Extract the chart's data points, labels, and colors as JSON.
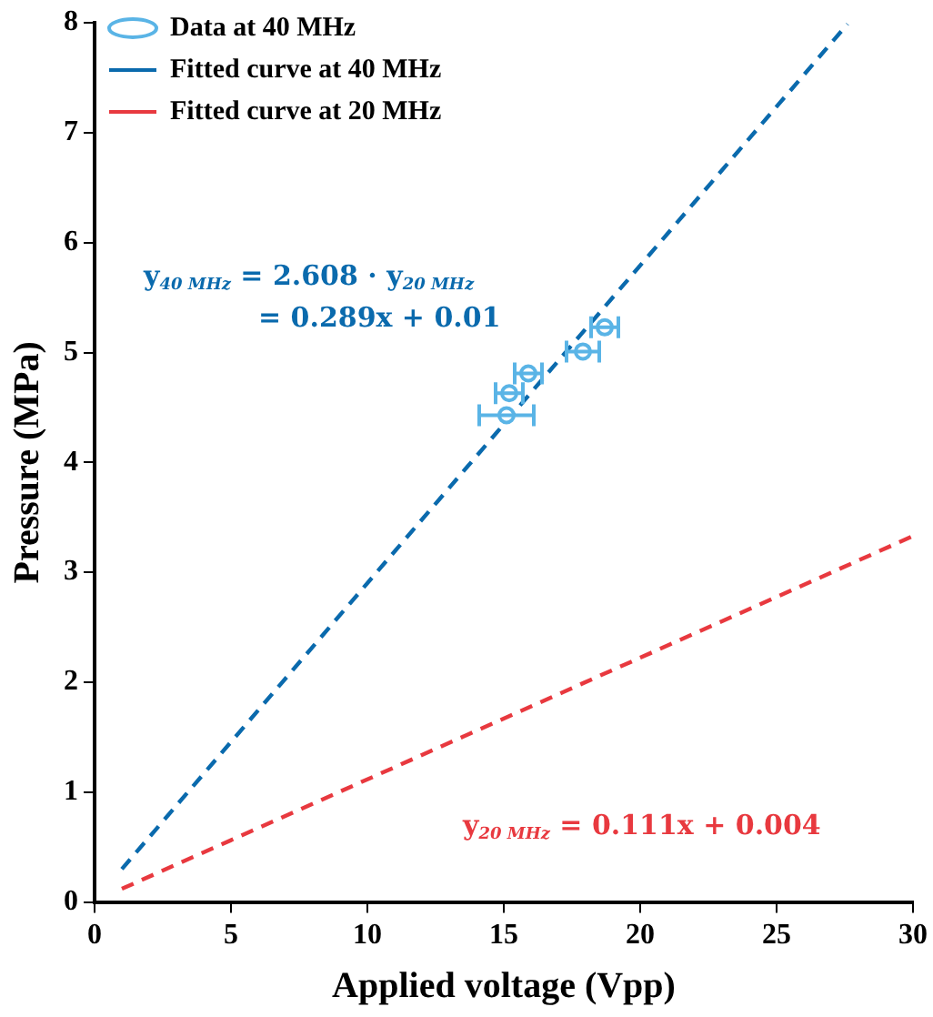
{
  "chart_data": {
    "type": "scatter",
    "xlabel": "Applied voltage (Vpp)",
    "ylabel": "Pressure (MPa)",
    "xlim": [
      0,
      30
    ],
    "xticks": [
      0,
      5,
      10,
      15,
      20,
      25,
      30
    ],
    "ylim": [
      0,
      8
    ],
    "yticks": [
      0,
      1,
      2,
      3,
      4,
      5,
      6,
      7,
      8
    ],
    "grid": false,
    "legend": "top left",
    "series": [
      {
        "name": "Data at 40 MHz",
        "color": "#5ab4e6",
        "marker": "circle",
        "x": [
          15.1,
          15.2,
          15.9,
          17.9,
          18.7
        ],
        "values": [
          4.43,
          4.63,
          4.81,
          5.01,
          5.23
        ],
        "xerrors": [
          1.0,
          0.5,
          0.5,
          0.6,
          0.5
        ]
      },
      {
        "name": "Fitted curve at 40 MHz",
        "type": "line",
        "color": "#0a6aad",
        "marker": "none",
        "line_style": "dashed",
        "x": [
          1,
          27.6
        ],
        "values": [
          0.3,
          7.99
        ]
      },
      {
        "name": "Fitted curve at 20 MHz",
        "type": "line",
        "color": "#e8393f",
        "marker": "none",
        "line_style": "dashed",
        "x": [
          1,
          30
        ],
        "values": [
          0.12,
          3.33
        ]
      }
    ],
    "annotations": [
      "y$_{40 MHz}$ = 2.608 · y$_{20 MHz}$",
      "= 0.289x + 0.01",
      "y$_{20 MHz}$ = 0.111x + 0.004"
    ]
  }
}
